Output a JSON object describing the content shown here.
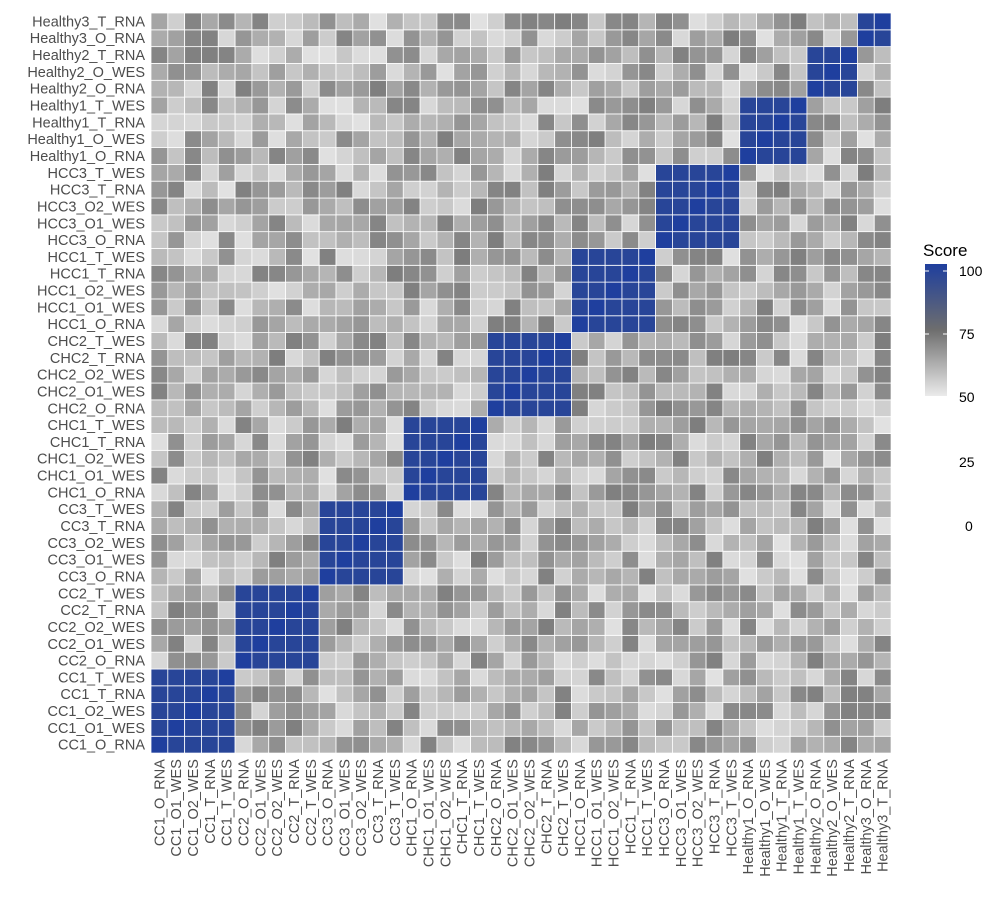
{
  "chart_data": {
    "type": "heatmap",
    "title": "",
    "xlabel": "",
    "ylabel": "",
    "samples": [
      "CC1_O_RNA",
      "CC1_O1_WES",
      "CC1_O2_WES",
      "CC1_T_RNA",
      "CC1_T_WES",
      "CC2_O_RNA",
      "CC2_O1_WES",
      "CC2_O2_WES",
      "CC2_T_RNA",
      "CC2_T_WES",
      "CC3_O_RNA",
      "CC3_O1_WES",
      "CC3_O2_WES",
      "CC3_T_RNA",
      "CC3_T_WES",
      "CHC1_O_RNA",
      "CHC1_O1_WES",
      "CHC1_O2_WES",
      "CHC1_T_RNA",
      "CHC1_T_WES",
      "CHC2_O_RNA",
      "CHC2_O1_WES",
      "CHC2_O2_WES",
      "CHC2_T_RNA",
      "CHC2_T_WES",
      "HCC1_O_RNA",
      "HCC1_O1_WES",
      "HCC1_O2_WES",
      "HCC1_T_RNA",
      "HCC1_T_WES",
      "HCC3_O_RNA",
      "HCC3_O1_WES",
      "HCC3_O2_WES",
      "HCC3_T_RNA",
      "HCC3_T_WES",
      "Healthy1_O_RNA",
      "Healthy1_O_WES",
      "Healthy1_T_RNA",
      "Healthy1_T_WES",
      "Healthy2_O_RNA",
      "Healthy2_O_WES",
      "Healthy2_T_RNA",
      "Healthy3_O_RNA",
      "Healthy3_T_RNA"
    ],
    "groups": [
      {
        "start": 0,
        "size": 5
      },
      {
        "start": 5,
        "size": 5
      },
      {
        "start": 10,
        "size": 5
      },
      {
        "start": 15,
        "size": 5
      },
      {
        "start": 20,
        "size": 5
      },
      {
        "start": 25,
        "size": 5
      },
      {
        "start": 30,
        "size": 5
      },
      {
        "start": 35,
        "size": 4
      },
      {
        "start": 39,
        "size": 3
      },
      {
        "start": 42,
        "size": 2
      }
    ],
    "x_order": "bottom-left origin: first sample at left of x-axis and bottom of y-axis",
    "within_group_score": 97,
    "self_score": 100,
    "between_group_score_range": [
      52,
      72
    ],
    "legend": {
      "title": "Score",
      "ticks": [
        "100",
        "75",
        "50",
        "25",
        "0"
      ],
      "colorbar_range": [
        50,
        100
      ],
      "position": "right"
    },
    "colors": {
      "low": "#ebebeb",
      "mid": "#6e6e6e",
      "high": "#1f3f9e",
      "grid": "#ffffff"
    },
    "grid": false
  }
}
